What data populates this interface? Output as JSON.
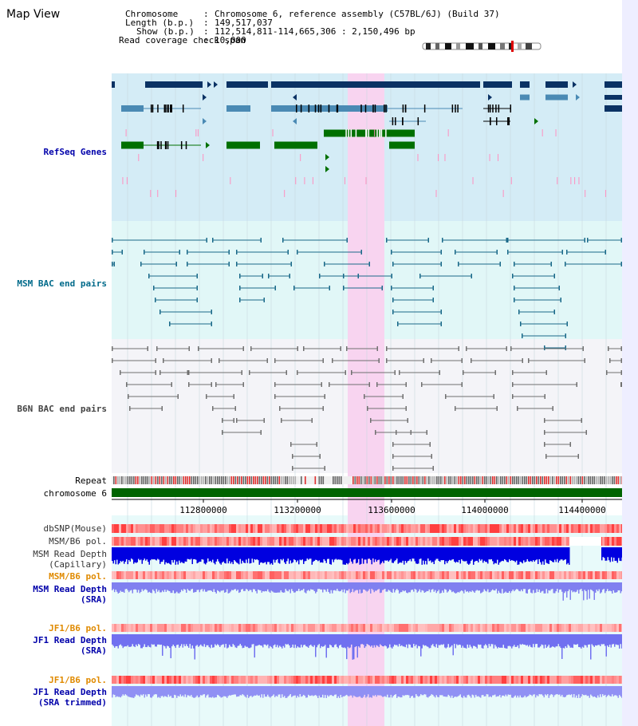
{
  "app": {
    "title": "Map View"
  },
  "header": {
    "rows": [
      {
        "key": "Chromosome",
        "value": "Chromosome 6, reference assembly (C57BL/6J) (Build 37)"
      },
      {
        "key": "Length (b.p.)",
        "value": "149,517,037"
      },
      {
        "key": "Show (b.p.)",
        "value": "112,514,811-114,665,306 : 2,150,496 bp"
      },
      {
        "key": "Read coverage check span",
        "value": "10,000"
      }
    ]
  },
  "tracks": {
    "refseq": "RefSeq Genes",
    "msm_bac": "MSM BAC end pairs",
    "b6n_bac": "B6N BAC end pairs",
    "repeat": "Repeat",
    "chromosome": "chromosome 6",
    "dbsnp": "dbSNP(Mouse)",
    "msm_b6_pol_1": "MSM/B6 pol.",
    "msm_depth_cap_1": "MSM Read Depth",
    "msm_depth_cap_2": "(Capillary)",
    "msm_b6_pol_2": "MSM/B6 pol.",
    "msm_depth_sra_1": "MSM Read Depth",
    "msm_depth_sra_2": "(SRA)",
    "jf1_b6_pol_1": "JF1/B6 pol.",
    "jf1_depth_sra_1": "JF1 Read Depth",
    "jf1_depth_sra_2": "(SRA)",
    "jf1_b6_pol_2": "JF1/B6 pol.",
    "jf1_depth_trim_1": "JF1 Read Depth",
    "jf1_depth_trim_2": "(SRA trimmed)"
  },
  "axis": {
    "ticks": [
      "112800000",
      "113200000",
      "113600000",
      "114000000",
      "114400000"
    ]
  },
  "colors": {
    "refseq_bg": "#d4ecf6",
    "msm_bg": "#e1f7f7",
    "b6n_bg": "#f4f4f8",
    "highlight": "#f8d4f0",
    "gene_dark": "#0a3264",
    "gene_mid": "#4a8ab4",
    "gene_green": "#007000",
    "msm_line": "#1a6a8a",
    "b6n_line": "#707070",
    "depth_blue": "#0000e0",
    "label_blue": "#0000aa",
    "label_teal": "#006a8a",
    "label_orange": "#e08a00"
  }
}
